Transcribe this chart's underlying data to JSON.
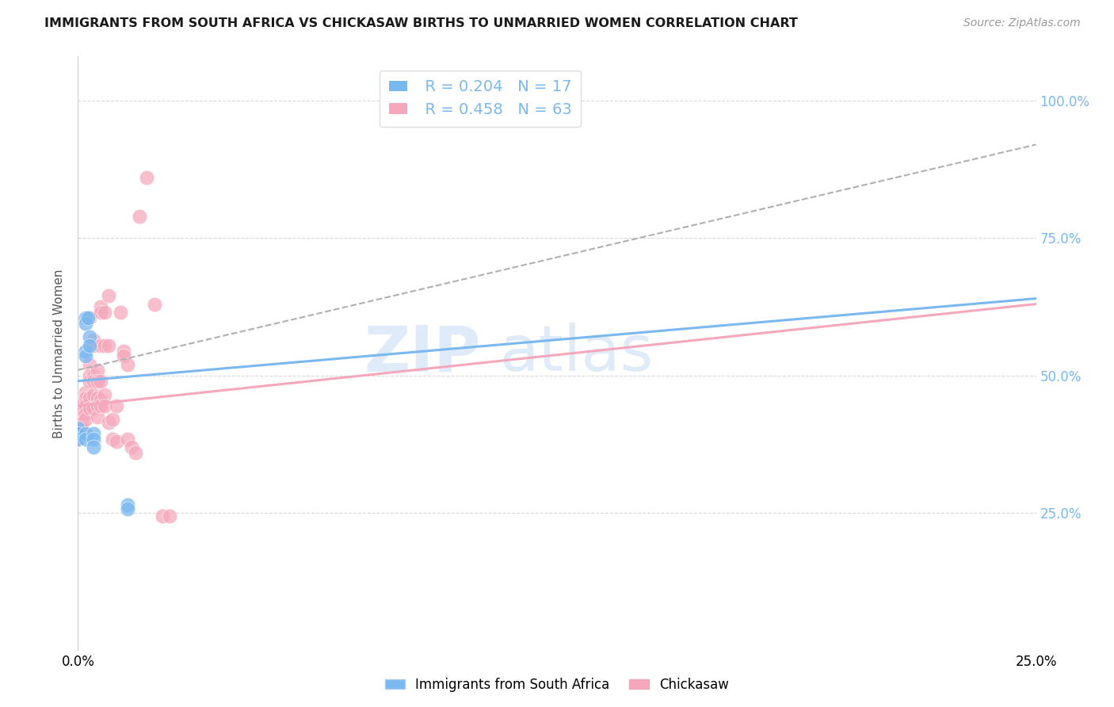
{
  "title": "IMMIGRANTS FROM SOUTH AFRICA VS CHICKASAW BIRTHS TO UNMARRIED WOMEN CORRELATION CHART",
  "source": "Source: ZipAtlas.com",
  "ylabel": "Births to Unmarried Women",
  "legend_blue_r": "R = 0.204",
  "legend_blue_n": "N = 17",
  "legend_pink_r": "R = 0.458",
  "legend_pink_n": "N = 63",
  "blue_color": "#7ab8f0",
  "pink_color": "#f5a8bc",
  "watermark_zip": "ZIP",
  "watermark_atlas": "atlas",
  "watermark_color": "#d0e4f7",
  "xlim": [
    0.0,
    0.25
  ],
  "ylim": [
    0.0,
    1.08
  ],
  "x_ticks": [
    0.0,
    0.025,
    0.05,
    0.075,
    0.1,
    0.125,
    0.15,
    0.175,
    0.2,
    0.225,
    0.25
  ],
  "y_ticks": [
    0.25,
    0.5,
    0.75,
    1.0
  ],
  "y_tick_labels": [
    "25.0%",
    "50.0%",
    "75.0%",
    "100.0%"
  ],
  "blue_scatter": [
    [
      0.0,
      0.405
    ],
    [
      0.0,
      0.395
    ],
    [
      0.0,
      0.385
    ],
    [
      0.002,
      0.605
    ],
    [
      0.002,
      0.595
    ],
    [
      0.002,
      0.545
    ],
    [
      0.002,
      0.535
    ],
    [
      0.002,
      0.395
    ],
    [
      0.002,
      0.385
    ],
    [
      0.0025,
      0.605
    ],
    [
      0.003,
      0.57
    ],
    [
      0.003,
      0.555
    ],
    [
      0.004,
      0.395
    ],
    [
      0.004,
      0.385
    ],
    [
      0.004,
      0.37
    ],
    [
      0.013,
      0.265
    ],
    [
      0.013,
      0.258
    ]
  ],
  "pink_scatter": [
    [
      0.0,
      0.445
    ],
    [
      0.0,
      0.435
    ],
    [
      0.0,
      0.425
    ],
    [
      0.0,
      0.415
    ],
    [
      0.0,
      0.405
    ],
    [
      0.0,
      0.395
    ],
    [
      0.0,
      0.385
    ],
    [
      0.001,
      0.445
    ],
    [
      0.001,
      0.435
    ],
    [
      0.001,
      0.425
    ],
    [
      0.001,
      0.415
    ],
    [
      0.001,
      0.405
    ],
    [
      0.002,
      0.47
    ],
    [
      0.002,
      0.46
    ],
    [
      0.002,
      0.445
    ],
    [
      0.002,
      0.43
    ],
    [
      0.002,
      0.42
    ],
    [
      0.003,
      0.605
    ],
    [
      0.003,
      0.52
    ],
    [
      0.003,
      0.5
    ],
    [
      0.003,
      0.49
    ],
    [
      0.003,
      0.46
    ],
    [
      0.003,
      0.44
    ],
    [
      0.004,
      0.565
    ],
    [
      0.004,
      0.555
    ],
    [
      0.004,
      0.5
    ],
    [
      0.004,
      0.49
    ],
    [
      0.004,
      0.465
    ],
    [
      0.004,
      0.44
    ],
    [
      0.005,
      0.51
    ],
    [
      0.005,
      0.49
    ],
    [
      0.005,
      0.46
    ],
    [
      0.005,
      0.445
    ],
    [
      0.005,
      0.425
    ],
    [
      0.006,
      0.625
    ],
    [
      0.006,
      0.615
    ],
    [
      0.006,
      0.555
    ],
    [
      0.006,
      0.49
    ],
    [
      0.006,
      0.455
    ],
    [
      0.006,
      0.445
    ],
    [
      0.007,
      0.615
    ],
    [
      0.007,
      0.555
    ],
    [
      0.007,
      0.465
    ],
    [
      0.007,
      0.445
    ],
    [
      0.008,
      0.645
    ],
    [
      0.008,
      0.555
    ],
    [
      0.008,
      0.415
    ],
    [
      0.009,
      0.42
    ],
    [
      0.009,
      0.385
    ],
    [
      0.01,
      0.445
    ],
    [
      0.01,
      0.38
    ],
    [
      0.011,
      0.615
    ],
    [
      0.012,
      0.545
    ],
    [
      0.012,
      0.535
    ],
    [
      0.013,
      0.52
    ],
    [
      0.013,
      0.385
    ],
    [
      0.014,
      0.37
    ],
    [
      0.015,
      0.36
    ],
    [
      0.016,
      0.79
    ],
    [
      0.018,
      0.86
    ],
    [
      0.02,
      0.63
    ],
    [
      0.022,
      0.245
    ],
    [
      0.024,
      0.245
    ]
  ],
  "blue_line": [
    0.0,
    0.25,
    0.49,
    0.64
  ],
  "pink_line": [
    0.0,
    0.25,
    0.445,
    0.63
  ],
  "dashed_line": [
    0.0,
    0.25,
    0.51,
    0.92
  ],
  "background_color": "#ffffff",
  "grid_color": "#d8d8d8"
}
